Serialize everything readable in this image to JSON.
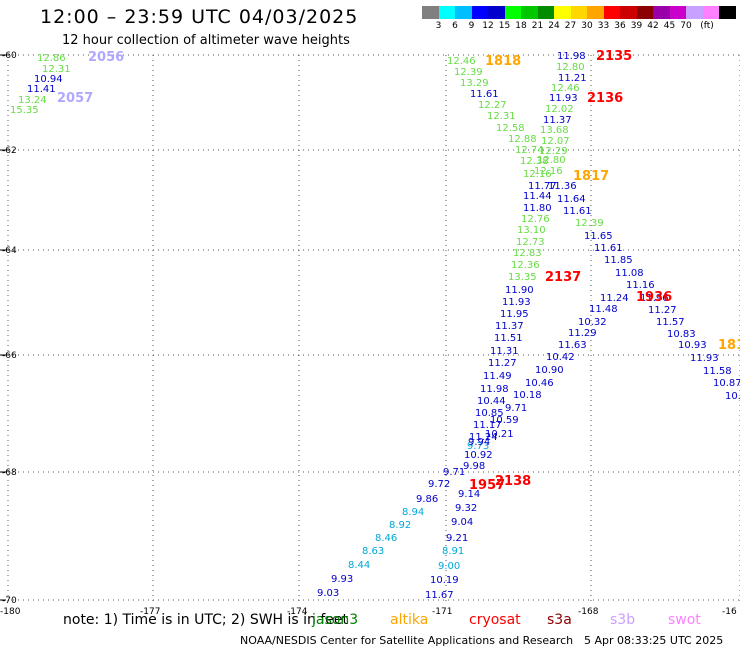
{
  "header": {
    "title": "12:00 – 23:59 UTC 04/03/2025",
    "subtitle": "12 hour collection of altimeter wave heights"
  },
  "scale": {
    "unit": "(ft)",
    "colors": [
      "#808080",
      "#00ffff",
      "#00bfff",
      "#0000ff",
      "#0000cd",
      "#00ff00",
      "#00c800",
      "#008c00",
      "#ffff00",
      "#ffd700",
      "#ffa500",
      "#ff0000",
      "#cd0000",
      "#8b0000",
      "#9900aa",
      "#cc00cc",
      "#c8a0ff",
      "#ff80ff",
      "#000000"
    ],
    "labels": [
      "3",
      "6",
      "9",
      "12",
      "15",
      "18",
      "21",
      "24",
      "27",
      "30",
      "33",
      "36",
      "39",
      "42",
      "45",
      "70"
    ]
  },
  "axes": {
    "lat_ticks": [
      "-60",
      "-62",
      "-64",
      "-66",
      "-68",
      "-70"
    ],
    "lon_ticks": [
      "-180",
      "-177",
      "-174",
      "-171",
      "-168",
      "-16"
    ]
  },
  "footer": {
    "note": "note:  1) Time is in UTC; 2) SWH is in feet",
    "satellites": [
      {
        "name": "jason3",
        "color": "#008000"
      },
      {
        "name": "altika",
        "color": "#ffa500"
      },
      {
        "name": "cryosat",
        "color": "#ff0000"
      },
      {
        "name": "s3a",
        "color": "#8b0000"
      },
      {
        "name": "s3b",
        "color": "#c8a0ff"
      },
      {
        "name": "swot",
        "color": "#ff80ff"
      }
    ],
    "credit": "NOAA/NESDIS Center for Satellite Applications and Research",
    "timestamp": "5 Apr 08:33:25 UTC 2025"
  },
  "colors": {
    "blue": "#0000cd",
    "green": "#66dd44",
    "cyan": "#00a8d8",
    "red": "#ff0000",
    "orange": "#ffa500",
    "lavender": "#b0a8ff"
  },
  "map_labels": [
    {
      "t": "12.86",
      "c": "green"
    },
    {
      "t": "12.31",
      "c": "green"
    },
    {
      "t": "10.94",
      "c": "blue"
    },
    {
      "t": "11.41",
      "c": "blue"
    },
    {
      "t": "13.24",
      "c": "green"
    },
    {
      "t": "15.35",
      "c": "green"
    },
    {
      "t": "2056",
      "c": "lavender"
    },
    {
      "t": "2057",
      "c": "lavender"
    },
    {
      "t": "12.46",
      "c": "green"
    },
    {
      "t": "12.39",
      "c": "green"
    },
    {
      "t": "13.29",
      "c": "green"
    },
    {
      "t": "11.61",
      "c": "blue"
    },
    {
      "t": "12.27",
      "c": "green"
    },
    {
      "t": "12.31",
      "c": "green"
    },
    {
      "t": "12.58",
      "c": "green"
    },
    {
      "t": "12.88",
      "c": "green"
    },
    {
      "t": "12.74",
      "c": "green"
    },
    {
      "t": "12.38",
      "c": "green"
    },
    {
      "t": "12.16",
      "c": "green"
    },
    {
      "t": "11.77",
      "c": "blue"
    },
    {
      "t": "11.44",
      "c": "blue"
    },
    {
      "t": "11.80",
      "c": "blue"
    },
    {
      "t": "12.76",
      "c": "green"
    },
    {
      "t": "13.10",
      "c": "green"
    },
    {
      "t": "12.73",
      "c": "green"
    },
    {
      "t": "12.83",
      "c": "green"
    },
    {
      "t": "12.36",
      "c": "green"
    },
    {
      "t": "13.35",
      "c": "green"
    },
    {
      "t": "11.90",
      "c": "blue"
    },
    {
      "t": "11.93",
      "c": "blue"
    },
    {
      "t": "11.95",
      "c": "blue"
    },
    {
      "t": "11.37",
      "c": "blue"
    },
    {
      "t": "11.51",
      "c": "blue"
    },
    {
      "t": "11.31",
      "c": "blue"
    },
    {
      "t": "11.27",
      "c": "blue"
    },
    {
      "t": "11.49",
      "c": "blue"
    },
    {
      "t": "11.98",
      "c": "blue"
    },
    {
      "t": "10.44",
      "c": "blue"
    },
    {
      "t": "10.85",
      "c": "blue"
    },
    {
      "t": "11.17",
      "c": "blue"
    },
    {
      "t": "11.24",
      "c": "blue"
    },
    {
      "t": "9.73",
      "c": "cyan"
    },
    {
      "t": "10.92",
      "c": "blue"
    },
    {
      "t": "9.98",
      "c": "blue"
    },
    {
      "t": "9.71",
      "c": "blue"
    },
    {
      "t": "9.72",
      "c": "blue"
    },
    {
      "t": "9.86",
      "c": "blue"
    },
    {
      "t": "8.94",
      "c": "cyan"
    },
    {
      "t": "8.92",
      "c": "cyan"
    },
    {
      "t": "8.46",
      "c": "cyan"
    },
    {
      "t": "8.63",
      "c": "cyan"
    },
    {
      "t": "8.44",
      "c": "cyan"
    },
    {
      "t": "9.93",
      "c": "blue"
    },
    {
      "t": "9.03",
      "c": "blue"
    },
    {
      "t": "11.98",
      "c": "blue"
    },
    {
      "t": "12.80",
      "c": "green"
    },
    {
      "t": "11.21",
      "c": "blue"
    },
    {
      "t": "12.46",
      "c": "green"
    },
    {
      "t": "11.93",
      "c": "blue"
    },
    {
      "t": "12.02",
      "c": "green"
    },
    {
      "t": "11.37",
      "c": "blue"
    },
    {
      "t": "13.68",
      "c": "green"
    },
    {
      "t": "12.07",
      "c": "green"
    },
    {
      "t": "12.29",
      "c": "green"
    },
    {
      "t": "12.80",
      "c": "green"
    },
    {
      "t": "12.16",
      "c": "green"
    },
    {
      "t": "11.36",
      "c": "blue"
    },
    {
      "t": "11.64",
      "c": "blue"
    },
    {
      "t": "11.61",
      "c": "blue"
    },
    {
      "t": "12.39",
      "c": "green"
    },
    {
      "t": "11.65",
      "c": "blue"
    },
    {
      "t": "11.61",
      "c": "blue"
    },
    {
      "t": "11.85",
      "c": "blue"
    },
    {
      "t": "11.08",
      "c": "blue"
    },
    {
      "t": "11.16",
      "c": "blue"
    },
    {
      "t": "11.24",
      "c": "blue"
    },
    {
      "t": "11.96",
      "c": "blue"
    },
    {
      "t": "11.48",
      "c": "blue"
    },
    {
      "t": "11.27",
      "c": "blue"
    },
    {
      "t": "10.32",
      "c": "blue"
    },
    {
      "t": "11.57",
      "c": "blue"
    },
    {
      "t": "11.29",
      "c": "blue"
    },
    {
      "t": "10.83",
      "c": "blue"
    },
    {
      "t": "11.63",
      "c": "blue"
    },
    {
      "t": "10.93",
      "c": "blue"
    },
    {
      "t": "10.42",
      "c": "blue"
    },
    {
      "t": "11.93",
      "c": "blue"
    },
    {
      "t": "10.90",
      "c": "blue"
    },
    {
      "t": "11.58",
      "c": "blue"
    },
    {
      "t": "10.46",
      "c": "blue"
    },
    {
      "t": "10.87",
      "c": "blue"
    },
    {
      "t": "10.18",
      "c": "blue"
    },
    {
      "t": "10.",
      "c": "blue"
    },
    {
      "t": "9.71",
      "c": "blue"
    },
    {
      "t": "10.59",
      "c": "blue"
    },
    {
      "t": "10.21",
      "c": "blue"
    },
    {
      "t": "9.94",
      "c": "blue"
    },
    {
      "t": "9.14",
      "c": "blue"
    },
    {
      "t": "9.32",
      "c": "blue"
    },
    {
      "t": "9.04",
      "c": "blue"
    },
    {
      "t": "9.21",
      "c": "blue"
    },
    {
      "t": "8.91",
      "c": "cyan"
    },
    {
      "t": "9.00",
      "c": "cyan"
    },
    {
      "t": "10.19",
      "c": "blue"
    },
    {
      "t": "11.67",
      "c": "blue"
    },
    {
      "t": "1818",
      "c": "orange"
    },
    {
      "t": "1817",
      "c": "orange"
    },
    {
      "t": "181",
      "c": "orange"
    },
    {
      "t": "2135",
      "c": "red"
    },
    {
      "t": "2136",
      "c": "red"
    },
    {
      "t": "2137",
      "c": "red"
    },
    {
      "t": "2138",
      "c": "red"
    },
    {
      "t": "1936",
      "c": "red"
    },
    {
      "t": "1957",
      "c": "red"
    }
  ]
}
